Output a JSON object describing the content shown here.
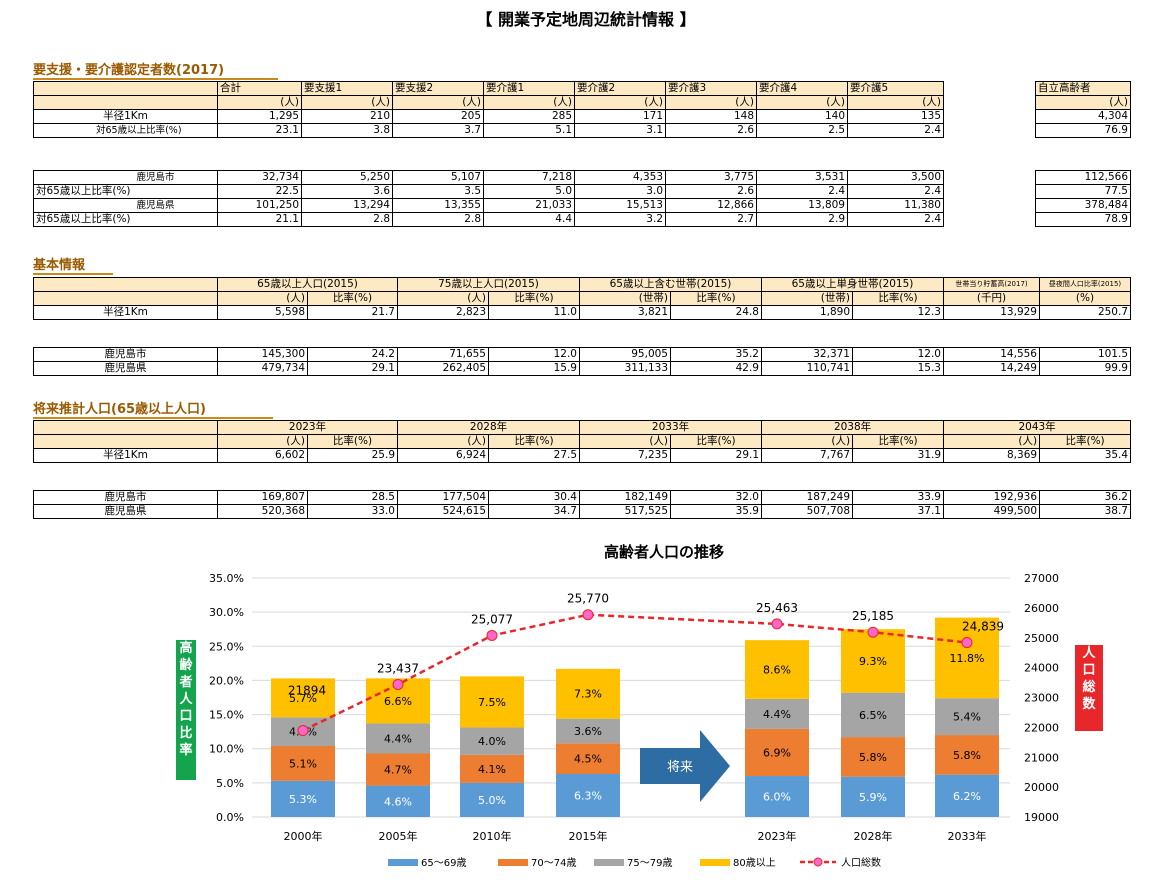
{
  "page_title": "【 開業予定地周辺統計情報 】",
  "care": {
    "title": "要支援・要介護認定者数(2017)",
    "headers": [
      "合計",
      "要支援1",
      "要支援2",
      "要介護1",
      "要介護2",
      "要介護3",
      "要介護4",
      "要介護5"
    ],
    "unit": "(人)",
    "independent_header": "自立高齢者",
    "rows1": [
      {
        "label": "半径1Km",
        "values": [
          "1,295",
          "210",
          "205",
          "285",
          "171",
          "148",
          "140",
          "135"
        ],
        "independent": "4,304"
      },
      {
        "label": "対65歳以上比率(%)",
        "values": [
          "23.1",
          "3.8",
          "3.7",
          "5.1",
          "3.1",
          "2.6",
          "2.5",
          "2.4"
        ],
        "independent": "76.9"
      }
    ],
    "rows2": [
      {
        "label": "鹿児島市",
        "values": [
          "32,734",
          "5,250",
          "5,107",
          "7,218",
          "4,353",
          "3,775",
          "3,531",
          "3,500"
        ],
        "independent": "112,566"
      },
      {
        "label": "対65歳以上比率(%)",
        "values": [
          "22.5",
          "3.6",
          "3.5",
          "5.0",
          "3.0",
          "2.6",
          "2.4",
          "2.4"
        ],
        "independent": "77.5"
      },
      {
        "label": "鹿児島県",
        "values": [
          "101,250",
          "13,294",
          "13,355",
          "21,033",
          "15,513",
          "12,866",
          "13,809",
          "11,380"
        ],
        "independent": "378,484"
      },
      {
        "label": "対65歳以上比率(%)",
        "values": [
          "21.1",
          "2.8",
          "2.8",
          "4.4",
          "3.2",
          "2.7",
          "2.9",
          "2.4"
        ],
        "independent": "78.9"
      }
    ]
  },
  "basic": {
    "title": "基本情報",
    "groups": [
      "65歳以上人口(2015)",
      "75歳以上人口(2015)",
      "65歳以上含む世帯(2015)",
      "65歳以上単身世帯(2015)"
    ],
    "savings_header": "世帯当り貯蓄高(2017)",
    "ratio_header": "昼夜間人口比率(2015)",
    "sub_person": "(人)",
    "sub_household": "(世帯)",
    "sub_ratio": "比率(%)",
    "sub_thousand_yen": "(千円)",
    "sub_percent": "(%)",
    "row1": {
      "label": "半径1Km",
      "values": [
        "5,598",
        "21.7",
        "2,823",
        "11.0",
        "3,821",
        "24.8",
        "1,890",
        "12.3",
        "13,929",
        "250.7"
      ]
    },
    "rows2": [
      {
        "label": "鹿児島市",
        "values": [
          "145,300",
          "24.2",
          "71,655",
          "12.0",
          "95,005",
          "35.2",
          "32,371",
          "12.0",
          "14,556",
          "101.5"
        ]
      },
      {
        "label": "鹿児島県",
        "values": [
          "479,734",
          "29.1",
          "262,405",
          "15.9",
          "311,133",
          "42.9",
          "110,741",
          "15.3",
          "14,249",
          "99.9"
        ]
      }
    ]
  },
  "future": {
    "title": "将来推計人口(65歳以上人口)",
    "years": [
      "2023年",
      "2028年",
      "2033年",
      "2038年",
      "2043年"
    ],
    "sub_person": "(人)",
    "sub_ratio": "比率(%)",
    "row1": {
      "label": "半径1Km",
      "values": [
        "6,602",
        "25.9",
        "6,924",
        "27.5",
        "7,235",
        "29.1",
        "7,767",
        "31.9",
        "8,369",
        "35.4"
      ]
    },
    "rows2": [
      {
        "label": "鹿児島市",
        "values": [
          "169,807",
          "28.5",
          "177,504",
          "30.4",
          "182,149",
          "32.0",
          "187,249",
          "33.9",
          "192,936",
          "36.2"
        ]
      },
      {
        "label": "鹿児島県",
        "values": [
          "520,368",
          "33.0",
          "524,615",
          "34.7",
          "517,525",
          "35.9",
          "507,708",
          "37.1",
          "499,500",
          "38.7"
        ]
      }
    ]
  },
  "chart_data": {
    "type": "bar",
    "title": "高齢者人口の推移",
    "ylabel": "高齢者人口比率",
    "y2label": "人口総数",
    "categories": [
      "2000年",
      "2005年",
      "2010年",
      "2015年",
      "2023年",
      "2028年",
      "2033年"
    ],
    "ylim": [
      0,
      35
    ],
    "y2lim": [
      19000,
      27000
    ],
    "yticks": [
      "0.0%",
      "5.0%",
      "10.0%",
      "15.0%",
      "20.0%",
      "25.0%",
      "30.0%",
      "35.0%"
    ],
    "y2ticks": [
      "19000",
      "20000",
      "21000",
      "22000",
      "23000",
      "24000",
      "25000",
      "26000",
      "27000"
    ],
    "series": [
      {
        "name": "65～69歳",
        "color": "#5b9bd5",
        "values": [
          5.3,
          4.6,
          5.0,
          6.3,
          6.0,
          5.9,
          6.2
        ],
        "labels": [
          "5.3%",
          "4.6%",
          "5.0%",
          "6.3%",
          "6.0%",
          "5.9%",
          "6.2%"
        ]
      },
      {
        "name": "70～74歳",
        "color": "#ed7d31",
        "values": [
          5.1,
          4.7,
          4.1,
          4.5,
          6.9,
          5.8,
          5.8
        ],
        "labels": [
          "5.1%",
          "4.7%",
          "4.1%",
          "4.5%",
          "6.9%",
          "5.8%",
          "5.8%"
        ]
      },
      {
        "name": "75～79歳",
        "color": "#a5a5a5",
        "values": [
          4.2,
          4.4,
          4.0,
          3.6,
          4.4,
          6.5,
          5.4
        ],
        "labels": [
          "4.2%",
          "4.4%",
          "4.0%",
          "3.6%",
          "4.4%",
          "6.5%",
          "5.4%"
        ]
      },
      {
        "name": "80歳以上",
        "color": "#ffc000",
        "values": [
          5.7,
          6.6,
          7.5,
          7.3,
          8.6,
          9.3,
          11.8
        ],
        "labels": [
          "5.7%",
          "6.6%",
          "7.5%",
          "7.3%",
          "8.6%",
          "9.3%",
          "11.8%"
        ]
      }
    ],
    "line": {
      "name": "人口総数",
      "color": "#e8272a",
      "values": [
        21894,
        23437,
        25077,
        25770,
        25463,
        25185,
        24839
      ],
      "labels": [
        "21894",
        "23,437",
        "25,077",
        "25,770",
        "25,463",
        "25,185",
        "24,839"
      ]
    },
    "arrow_label": "将来"
  }
}
